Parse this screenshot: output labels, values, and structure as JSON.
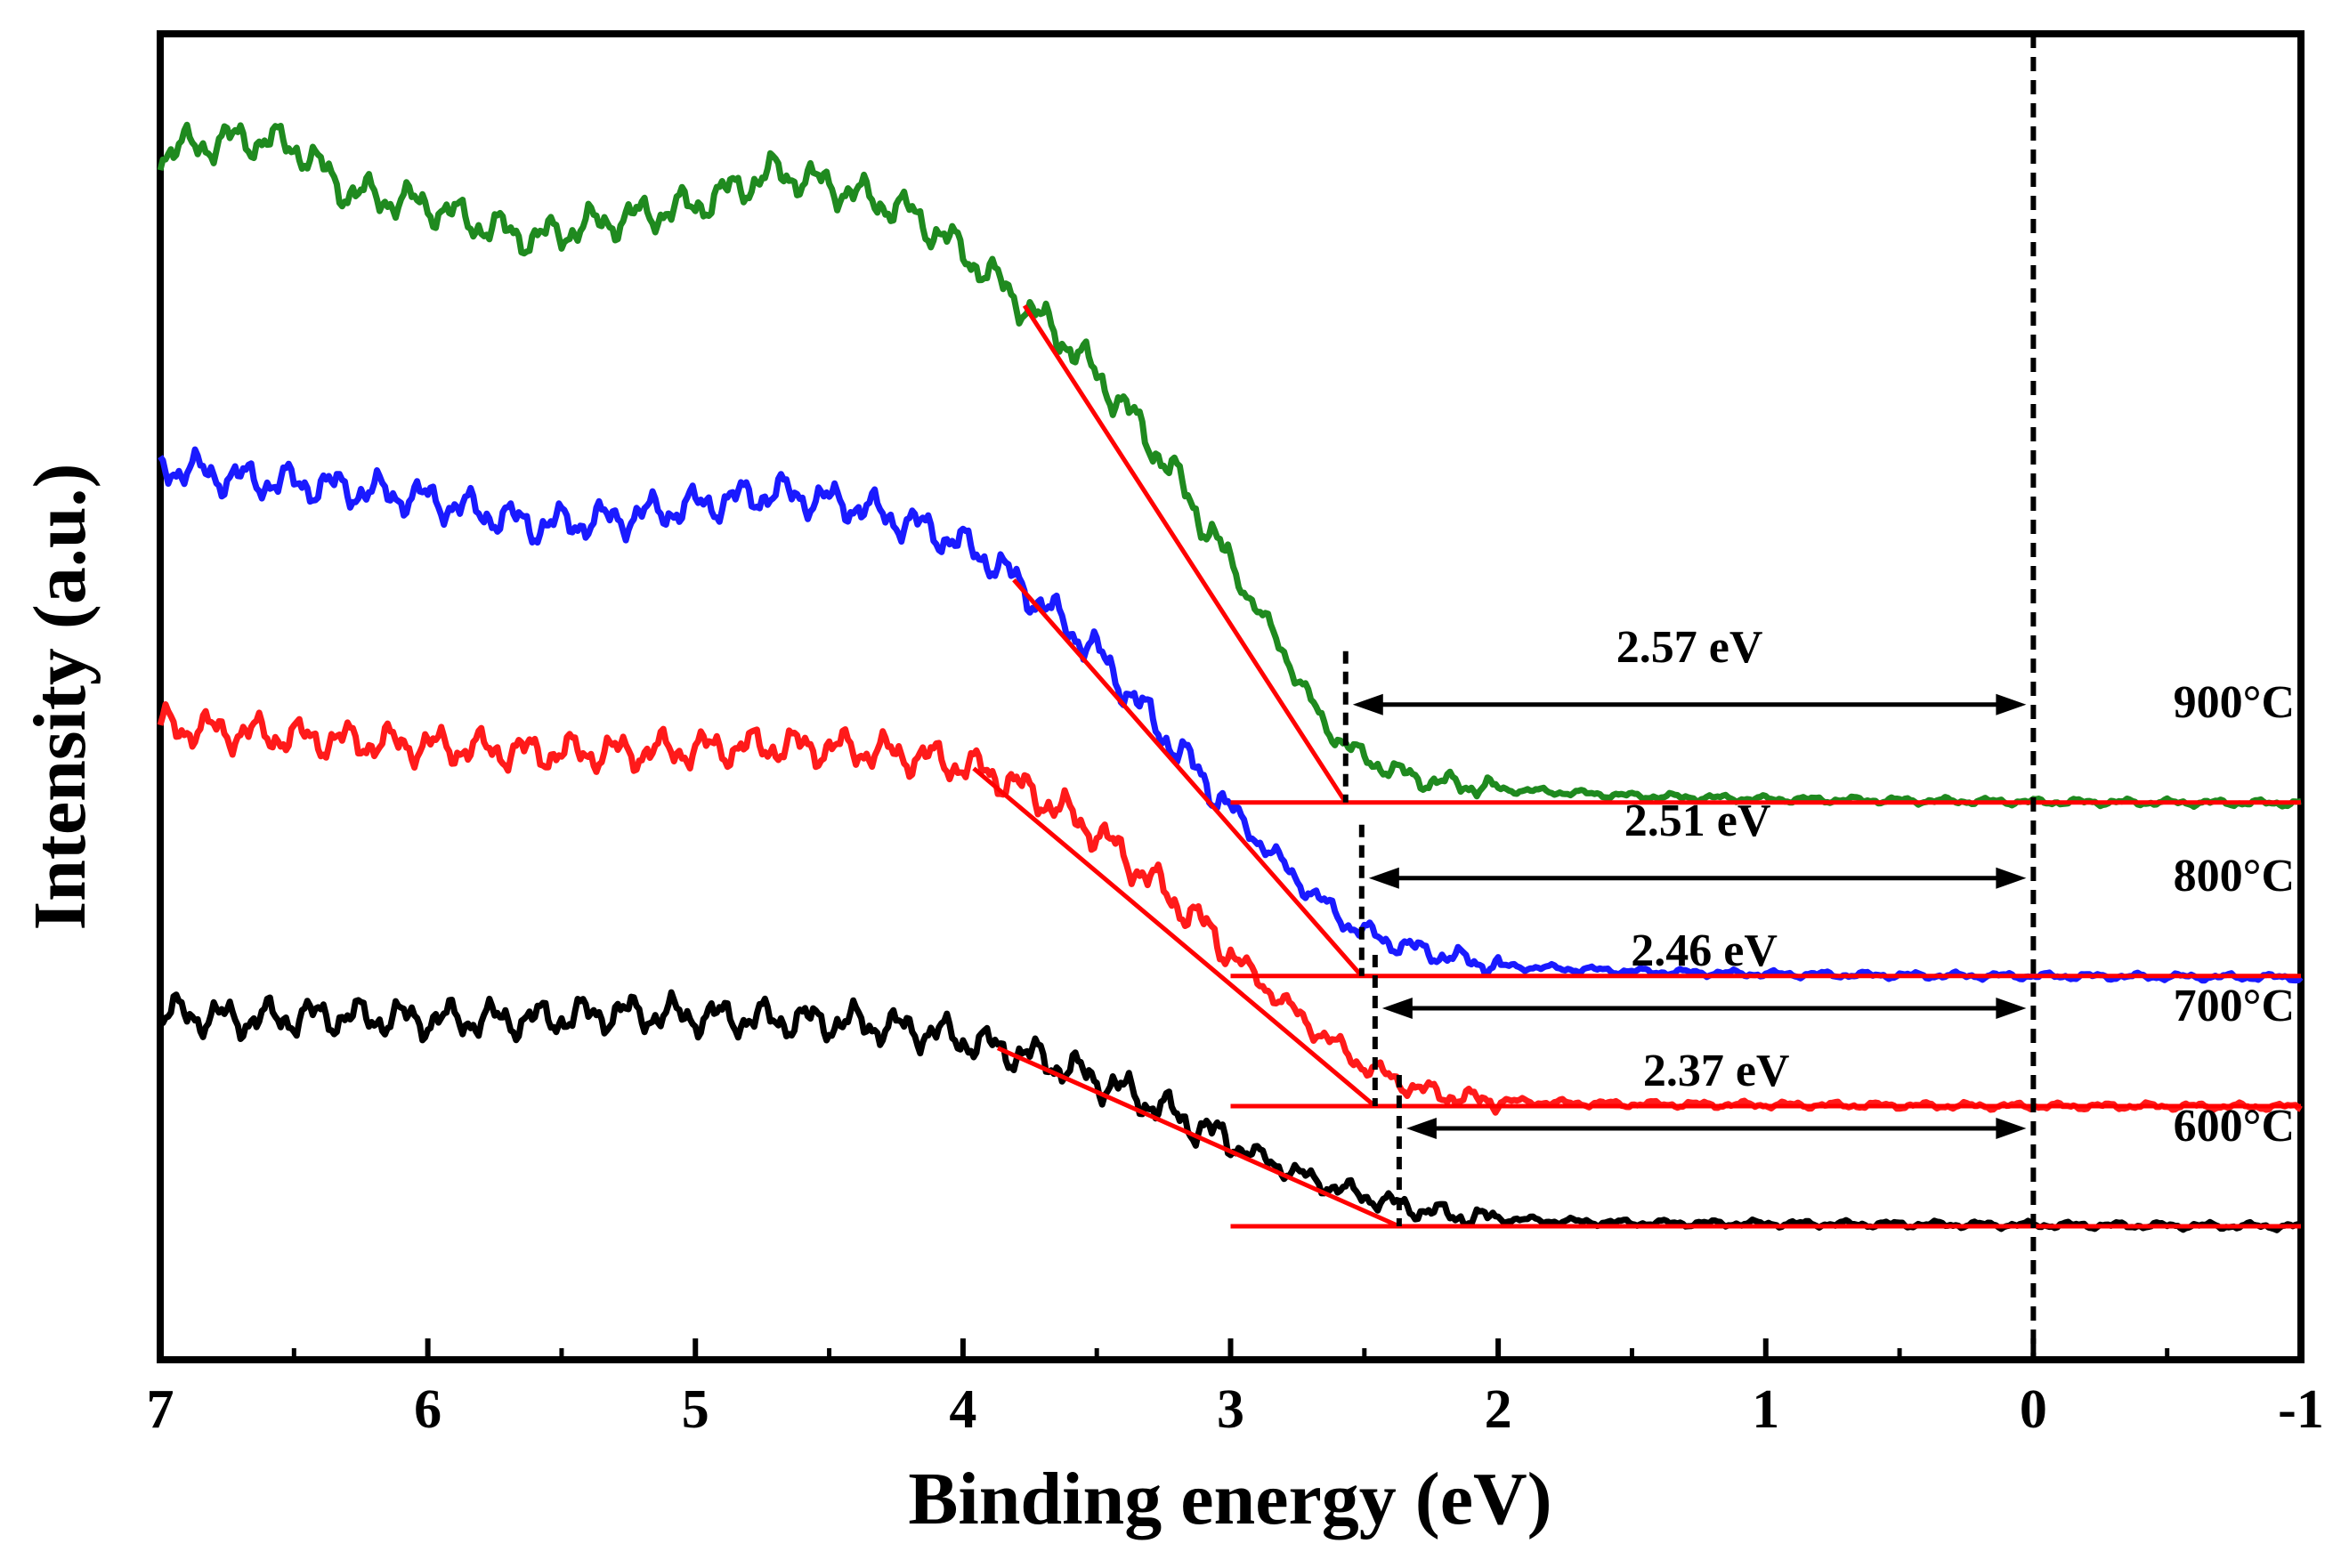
{
  "chart_data": {
    "type": "line",
    "title": "",
    "xlabel": "Binding energy (eV)",
    "ylabel": "Intensity (a.u.)",
    "xlim": [
      7,
      -1
    ],
    "x_reversed": true,
    "x_ticks": [
      "7",
      "6",
      "5",
      "4",
      "3",
      "2",
      "1",
      "0",
      "-1"
    ],
    "y_ticks": [],
    "grid": false,
    "reference_line_x": 0,
    "series": [
      {
        "name": "900°C",
        "label": "900°C",
        "color": "#1f8a1f",
        "onset_ev": 2.57,
        "annotation": "2.57 eV",
        "baseline": 6.35,
        "points": [
          [
            7.0,
            16.1
          ],
          [
            6.7,
            16.3
          ],
          [
            6.5,
            16.2
          ],
          [
            6.3,
            15.5
          ],
          [
            6.0,
            15.3
          ],
          [
            5.8,
            15.0
          ],
          [
            5.6,
            14.8
          ],
          [
            5.4,
            15.0
          ],
          [
            5.0,
            15.3
          ],
          [
            4.7,
            15.8
          ],
          [
            4.5,
            15.6
          ],
          [
            4.2,
            15.2
          ],
          [
            4.0,
            14.6
          ],
          [
            3.8,
            13.9
          ],
          [
            3.6,
            13.2
          ],
          [
            3.4,
            12.3
          ],
          [
            3.2,
            11.2
          ],
          [
            3.0,
            9.9
          ],
          [
            2.8,
            8.6
          ],
          [
            2.65,
            7.5
          ],
          [
            2.5,
            7.0
          ],
          [
            2.3,
            6.7
          ],
          [
            2.0,
            6.55
          ],
          [
            1.5,
            6.45
          ],
          [
            1.0,
            6.4
          ],
          [
            0.5,
            6.38
          ],
          [
            0.0,
            6.36
          ],
          [
            -0.5,
            6.35
          ],
          [
            -1.0,
            6.34
          ]
        ]
      },
      {
        "name": "800°C",
        "label": "800°C",
        "color": "#1a1aff",
        "onset_ev": 2.51,
        "annotation": "2.51 eV",
        "baseline": 3.75,
        "points": [
          [
            7.0,
            11.4
          ],
          [
            6.7,
            11.2
          ],
          [
            6.4,
            11.1
          ],
          [
            6.0,
            10.9
          ],
          [
            5.6,
            10.5
          ],
          [
            5.3,
            10.6
          ],
          [
            5.0,
            10.8
          ],
          [
            4.7,
            11.0
          ],
          [
            4.4,
            10.8
          ],
          [
            4.1,
            10.4
          ],
          [
            3.9,
            10.0
          ],
          [
            3.7,
            9.3
          ],
          [
            3.5,
            8.6
          ],
          [
            3.3,
            7.6
          ],
          [
            3.1,
            6.7
          ],
          [
            2.9,
            5.8
          ],
          [
            2.7,
            5.0
          ],
          [
            2.55,
            4.5
          ],
          [
            2.4,
            4.25
          ],
          [
            2.2,
            4.05
          ],
          [
            2.0,
            3.9
          ],
          [
            1.5,
            3.82
          ],
          [
            1.0,
            3.78
          ],
          [
            0.5,
            3.76
          ],
          [
            0.0,
            3.75
          ],
          [
            -0.5,
            3.74
          ],
          [
            -1.0,
            3.73
          ]
        ]
      },
      {
        "name": "700°C",
        "label": "700°C",
        "color": "#ff1a1a",
        "onset_ev": 2.46,
        "annotation": "2.46 eV",
        "baseline": 1.8,
        "points": [
          [
            7.0,
            7.5
          ],
          [
            6.7,
            7.4
          ],
          [
            6.4,
            7.3
          ],
          [
            6.0,
            7.2
          ],
          [
            5.6,
            7.1
          ],
          [
            5.3,
            7.1
          ],
          [
            5.0,
            7.15
          ],
          [
            4.7,
            7.2
          ],
          [
            4.4,
            7.15
          ],
          [
            4.1,
            7.0
          ],
          [
            3.9,
            6.8
          ],
          [
            3.7,
            6.4
          ],
          [
            3.5,
            5.9
          ],
          [
            3.3,
            5.2
          ],
          [
            3.1,
            4.5
          ],
          [
            2.9,
            3.7
          ],
          [
            2.7,
            3.0
          ],
          [
            2.5,
            2.4
          ],
          [
            2.3,
            2.05
          ],
          [
            2.1,
            1.9
          ],
          [
            1.8,
            1.85
          ],
          [
            1.5,
            1.83
          ],
          [
            1.0,
            1.82
          ],
          [
            0.5,
            1.81
          ],
          [
            0.0,
            1.8
          ],
          [
            -0.5,
            1.8
          ],
          [
            -1.0,
            1.79
          ]
        ]
      },
      {
        "name": "600°C",
        "label": "600°C",
        "color": "#000000",
        "onset_ev": 2.37,
        "annotation": "2.37 eV",
        "baseline": 0.0,
        "points": [
          [
            7.0,
            3.2
          ],
          [
            6.7,
            3.1
          ],
          [
            6.4,
            3.15
          ],
          [
            6.0,
            3.1
          ],
          [
            5.6,
            3.1
          ],
          [
            5.3,
            3.2
          ],
          [
            5.0,
            3.15
          ],
          [
            4.7,
            3.1
          ],
          [
            4.4,
            3.05
          ],
          [
            4.1,
            2.9
          ],
          [
            3.9,
            2.7
          ],
          [
            3.7,
            2.5
          ],
          [
            3.5,
            2.2
          ],
          [
            3.3,
            1.85
          ],
          [
            3.1,
            1.45
          ],
          [
            2.9,
            1.05
          ],
          [
            2.7,
            0.7
          ],
          [
            2.5,
            0.45
          ],
          [
            2.3,
            0.25
          ],
          [
            2.1,
            0.13
          ],
          [
            1.8,
            0.08
          ],
          [
            1.5,
            0.05
          ],
          [
            1.0,
            0.04
          ],
          [
            0.5,
            0.03
          ],
          [
            0.0,
            0.02
          ],
          [
            -0.5,
            0.01
          ],
          [
            -1.0,
            0.0
          ]
        ]
      }
    ]
  }
}
